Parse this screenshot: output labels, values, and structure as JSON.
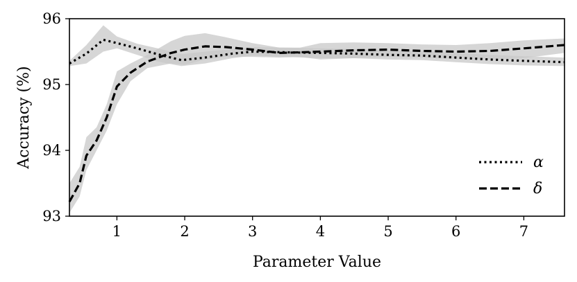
{
  "chart_data": {
    "type": "line",
    "title": "",
    "xlabel": "Parameter Value",
    "ylabel": "Accuracy (%)",
    "xlim": [
      0.3,
      7.6
    ],
    "ylim": [
      93,
      96
    ],
    "x_ticks": [
      1,
      2,
      3,
      4,
      5,
      6,
      7
    ],
    "y_ticks": [
      93,
      94,
      95,
      96
    ],
    "grid": false,
    "legend_position": "bottom-right",
    "band_color": "#c8c8c8",
    "line_color": "#000000",
    "series": [
      {
        "name": "α",
        "style": "dotted",
        "points": [
          {
            "x": 0.3,
            "y": 95.32,
            "lo": 95.28,
            "hi": 95.36
          },
          {
            "x": 0.55,
            "y": 95.47,
            "lo": 95.32,
            "hi": 95.6
          },
          {
            "x": 0.8,
            "y": 95.68,
            "lo": 95.5,
            "hi": 95.9
          },
          {
            "x": 1.0,
            "y": 95.63,
            "lo": 95.55,
            "hi": 95.73
          },
          {
            "x": 1.3,
            "y": 95.55,
            "lo": 95.45,
            "hi": 95.62
          },
          {
            "x": 1.6,
            "y": 95.46,
            "lo": 95.35,
            "hi": 95.55
          },
          {
            "x": 1.95,
            "y": 95.37,
            "lo": 95.28,
            "hi": 95.46
          },
          {
            "x": 2.3,
            "y": 95.41,
            "lo": 95.32,
            "hi": 95.5
          },
          {
            "x": 2.7,
            "y": 95.47,
            "lo": 95.4,
            "hi": 95.54
          },
          {
            "x": 3.0,
            "y": 95.5,
            "lo": 95.44,
            "hi": 95.57
          },
          {
            "x": 3.5,
            "y": 95.49,
            "lo": 95.42,
            "hi": 95.56
          },
          {
            "x": 4.0,
            "y": 95.48,
            "lo": 95.4,
            "hi": 95.55
          },
          {
            "x": 4.5,
            "y": 95.47,
            "lo": 95.4,
            "hi": 95.54
          },
          {
            "x": 5.0,
            "y": 95.45,
            "lo": 95.38,
            "hi": 95.52
          },
          {
            "x": 5.5,
            "y": 95.44,
            "lo": 95.37,
            "hi": 95.51
          },
          {
            "x": 6.0,
            "y": 95.41,
            "lo": 95.34,
            "hi": 95.48
          },
          {
            "x": 6.5,
            "y": 95.38,
            "lo": 95.31,
            "hi": 95.45
          },
          {
            "x": 7.0,
            "y": 95.36,
            "lo": 95.29,
            "hi": 95.43
          },
          {
            "x": 7.6,
            "y": 95.34,
            "lo": 95.28,
            "hi": 95.41
          }
        ]
      },
      {
        "name": "δ",
        "style": "dashed",
        "points": [
          {
            "x": 0.3,
            "y": 93.22,
            "lo": 93.05,
            "hi": 93.5
          },
          {
            "x": 0.45,
            "y": 93.5,
            "lo": 93.3,
            "hi": 93.75
          },
          {
            "x": 0.55,
            "y": 93.92,
            "lo": 93.7,
            "hi": 94.2
          },
          {
            "x": 0.7,
            "y": 94.15,
            "lo": 94.0,
            "hi": 94.35
          },
          {
            "x": 0.85,
            "y": 94.5,
            "lo": 94.3,
            "hi": 94.7
          },
          {
            "x": 1.0,
            "y": 94.97,
            "lo": 94.7,
            "hi": 95.2
          },
          {
            "x": 1.2,
            "y": 95.18,
            "lo": 95.05,
            "hi": 95.32
          },
          {
            "x": 1.45,
            "y": 95.35,
            "lo": 95.25,
            "hi": 95.45
          },
          {
            "x": 1.8,
            "y": 95.48,
            "lo": 95.32,
            "hi": 95.66
          },
          {
            "x": 2.0,
            "y": 95.53,
            "lo": 95.3,
            "hi": 95.74
          },
          {
            "x": 2.3,
            "y": 95.58,
            "lo": 95.38,
            "hi": 95.78
          },
          {
            "x": 2.6,
            "y": 95.57,
            "lo": 95.42,
            "hi": 95.72
          },
          {
            "x": 3.0,
            "y": 95.53,
            "lo": 95.42,
            "hi": 95.63
          },
          {
            "x": 3.4,
            "y": 95.48,
            "lo": 95.41,
            "hi": 95.56
          },
          {
            "x": 3.7,
            "y": 95.49,
            "lo": 95.42,
            "hi": 95.56
          },
          {
            "x": 4.0,
            "y": 95.5,
            "lo": 95.38,
            "hi": 95.63
          },
          {
            "x": 4.5,
            "y": 95.52,
            "lo": 95.4,
            "hi": 95.64
          },
          {
            "x": 5.0,
            "y": 95.53,
            "lo": 95.42,
            "hi": 95.63
          },
          {
            "x": 5.5,
            "y": 95.51,
            "lo": 95.41,
            "hi": 95.61
          },
          {
            "x": 6.0,
            "y": 95.5,
            "lo": 95.39,
            "hi": 95.6
          },
          {
            "x": 6.5,
            "y": 95.51,
            "lo": 95.38,
            "hi": 95.63
          },
          {
            "x": 7.0,
            "y": 95.55,
            "lo": 95.4,
            "hi": 95.67
          },
          {
            "x": 7.6,
            "y": 95.6,
            "lo": 95.48,
            "hi": 95.7
          }
        ]
      }
    ]
  }
}
